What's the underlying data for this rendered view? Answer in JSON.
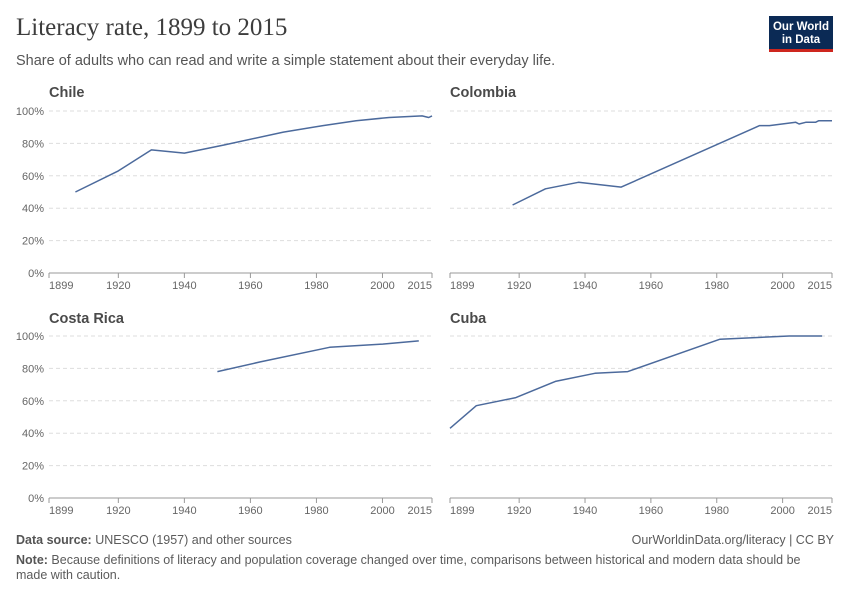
{
  "title": "Literacy rate, 1899 to 2015",
  "subtitle": "Share of adults who can read and write a simple statement about their everyday life.",
  "logo": {
    "line1": "Our World",
    "line2": "in Data"
  },
  "footer": {
    "source_label": "Data source:",
    "source_text": " UNESCO (1957) and other sources",
    "url": "OurWorldinData.org/literacy | CC BY",
    "note_label": "Note:",
    "note_text": " Because definitions of literacy and population coverage changed over time, comparisons between historical and modern data should be made with caution."
  },
  "colors": {
    "line": "#4c6a9c",
    "grid": "#dddddd",
    "axis": "#999999",
    "text": "#666666"
  },
  "chart_data": [
    {
      "type": "line",
      "title": "Chile",
      "xlim": [
        1899,
        2015
      ],
      "ylim": [
        0,
        100
      ],
      "xticks": [
        1899,
        1920,
        1940,
        1960,
        1980,
        2000,
        2015
      ],
      "yticks": [
        0,
        20,
        40,
        60,
        80,
        100
      ],
      "ytick_labels": [
        "0%",
        "20%",
        "40%",
        "60%",
        "80%",
        "100%"
      ],
      "grid": true,
      "x": [
        1907,
        1920,
        1930,
        1940,
        1952,
        1970,
        1982,
        1992,
        2002,
        2012,
        2014,
        2015
      ],
      "y": [
        50,
        63,
        76,
        74,
        79,
        87,
        91,
        94,
        96,
        97,
        96,
        97
      ]
    },
    {
      "type": "line",
      "title": "Colombia",
      "xlim": [
        1899,
        2015
      ],
      "ylim": [
        0,
        100
      ],
      "xticks": [
        1899,
        1920,
        1940,
        1960,
        1980,
        2000,
        2015
      ],
      "yticks": [
        0,
        20,
        40,
        60,
        80,
        100
      ],
      "ytick_labels": [
        "0%",
        "20%",
        "40%",
        "60%",
        "80%",
        "100%"
      ],
      "grid": true,
      "x": [
        1918,
        1928,
        1938,
        1951,
        1993,
        1996,
        2004,
        2005,
        2007,
        2010,
        2011,
        2015
      ],
      "y": [
        42,
        52,
        56,
        53,
        91,
        91,
        93,
        92,
        93,
        93,
        94,
        94
      ]
    },
    {
      "type": "line",
      "title": "Costa Rica",
      "xlim": [
        1899,
        2015
      ],
      "ylim": [
        0,
        100
      ],
      "xticks": [
        1899,
        1920,
        1940,
        1960,
        1980,
        2000,
        2015
      ],
      "yticks": [
        0,
        20,
        40,
        60,
        80,
        100
      ],
      "ytick_labels": [
        "0%",
        "20%",
        "40%",
        "60%",
        "80%",
        "100%"
      ],
      "grid": true,
      "x": [
        1950,
        1963,
        1984,
        2000,
        2011
      ],
      "y": [
        78,
        84,
        93,
        95,
        97
      ]
    },
    {
      "type": "line",
      "title": "Cuba",
      "xlim": [
        1899,
        2015
      ],
      "ylim": [
        0,
        100
      ],
      "xticks": [
        1899,
        1920,
        1940,
        1960,
        1980,
        2000,
        2015
      ],
      "yticks": [
        0,
        20,
        40,
        60,
        80,
        100
      ],
      "ytick_labels": [
        "0%",
        "20%",
        "40%",
        "60%",
        "80%",
        "100%"
      ],
      "grid": true,
      "x": [
        1899,
        1907,
        1919,
        1931,
        1943,
        1953,
        1981,
        2002,
        2012
      ],
      "y": [
        43,
        57,
        62,
        72,
        77,
        78,
        98,
        100,
        100
      ]
    }
  ]
}
